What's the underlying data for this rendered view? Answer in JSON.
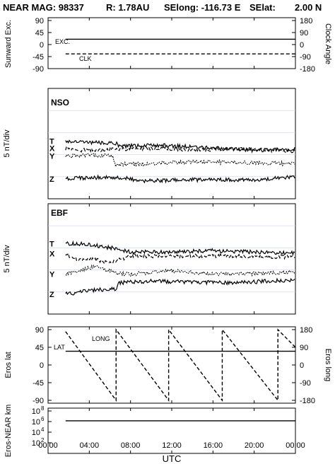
{
  "header": {
    "title_left": "NEAR MAG: 98337",
    "title_r": "R: 1.78AU",
    "title_selong": "SElong: -116.73 E",
    "title_selat": "SElat:",
    "title_selat_val": "2.00 N"
  },
  "x_axis": {
    "label": "UTC",
    "ticks": [
      "00:00",
      "04:00",
      "08:00",
      "12:00",
      "16:00",
      "20:00",
      "00:00"
    ]
  },
  "chart_data": [
    {
      "type": "line",
      "panel": "sunward-excursion-clock-angle",
      "ylabel_left": "Sunward Exc.",
      "ylabel_right": "Clock Angle",
      "yticks_left": [
        "90",
        "45",
        "0",
        "-45",
        "-90"
      ],
      "yticks_right": [
        "180",
        "90",
        "0",
        "-90",
        "-180"
      ],
      "ylim_left": [
        -90,
        90
      ],
      "ylim_right": [
        -180,
        180
      ],
      "series": [
        {
          "name": "EXC.",
          "style": "solid",
          "x": [
            1.7,
            24.0
          ],
          "y": [
            20,
            20
          ]
        },
        {
          "name": "CLK",
          "style": "dashed",
          "axis": "right",
          "x": [
            1.7,
            24.0
          ],
          "y": [
            -70,
            -70
          ]
        }
      ]
    },
    {
      "type": "line",
      "panel": "NSO",
      "tag": "NSO",
      "ylabel": "5 nT/div",
      "series": [
        {
          "name": "T",
          "style": "solid",
          "start": 7.4,
          "points": [
            [
              1.7,
              7.4
            ],
            [
              6.6,
              7.7
            ],
            [
              6.8,
              8.1
            ],
            [
              11,
              8.0
            ],
            [
              15,
              8.3
            ],
            [
              20,
              8.7
            ],
            [
              24,
              8.5
            ]
          ]
        },
        {
          "name": "X",
          "style": "dashed",
          "start": 8.4,
          "points": [
            [
              1.7,
              8.4
            ],
            [
              3,
              8.7
            ],
            [
              6,
              8.6
            ],
            [
              10,
              8.4
            ],
            [
              14,
              8.6
            ],
            [
              18,
              8.5
            ],
            [
              24,
              8.8
            ]
          ]
        },
        {
          "name": "Y",
          "style": "dotted",
          "start": 9.5,
          "points": [
            [
              1.7,
              9.5
            ],
            [
              5,
              9.4
            ],
            [
              6.3,
              9.5
            ],
            [
              6.5,
              10.7
            ],
            [
              10,
              10.6
            ],
            [
              14,
              10.3
            ],
            [
              18,
              10.4
            ],
            [
              24,
              10.6
            ]
          ]
        },
        {
          "name": "Z",
          "style": "solid",
          "start": 12.7,
          "points": [
            [
              1.7,
              12.7
            ],
            [
              5,
              12.5
            ],
            [
              7,
              12.5
            ],
            [
              9,
              13.0
            ],
            [
              12,
              12.9
            ],
            [
              16,
              12.8
            ],
            [
              20,
              12.9
            ],
            [
              24,
              12.4
            ]
          ]
        }
      ]
    },
    {
      "type": "line",
      "panel": "EBF",
      "tag": "EBF",
      "ylabel": "5 nT/div",
      "series": [
        {
          "name": "T",
          "style": "solid",
          "start": 5.6,
          "points": [
            [
              1.7,
              5.6
            ],
            [
              4,
              5.7
            ],
            [
              6.5,
              6.3
            ],
            [
              8,
              6.8
            ],
            [
              12,
              6.8
            ],
            [
              16,
              6.6
            ],
            [
              20,
              6.8
            ],
            [
              24,
              6.9
            ]
          ]
        },
        {
          "name": "X",
          "style": "dashed",
          "start": 7.0,
          "points": [
            [
              1.7,
              7.0
            ],
            [
              3,
              8.0
            ],
            [
              4,
              7.6
            ],
            [
              6,
              8.4
            ],
            [
              8,
              7.3
            ],
            [
              12,
              7.4
            ],
            [
              16,
              7.3
            ],
            [
              24,
              7.5
            ]
          ]
        },
        {
          "name": "Y",
          "style": "dotted",
          "start": 9.9,
          "points": [
            [
              1.7,
              9.9
            ],
            [
              3,
              9.5
            ],
            [
              4.5,
              8.8
            ],
            [
              6.5,
              9.7
            ],
            [
              8,
              9.9
            ],
            [
              12,
              9.4
            ],
            [
              16,
              9.9
            ],
            [
              20,
              9.8
            ],
            [
              24,
              9.6
            ]
          ]
        },
        {
          "name": "Z",
          "style": "solid",
          "start": 12.7,
          "points": [
            [
              1.7,
              12.7
            ],
            [
              4,
              12.2
            ],
            [
              6,
              12.0
            ],
            [
              6.6,
              12.0
            ],
            [
              6.8,
              11.1
            ],
            [
              10,
              10.9
            ],
            [
              14,
              11.0
            ],
            [
              18,
              11.1
            ],
            [
              24,
              10.7
            ]
          ]
        }
      ]
    },
    {
      "type": "line",
      "panel": "eros-lat-long",
      "ylabel_left": "Eros lat",
      "ylabel_right": "Eros long",
      "yticks_left": [
        "90",
        "45",
        "0",
        "-45",
        "-90"
      ],
      "yticks_right": [
        "180",
        "90",
        "0",
        "-90",
        "-180"
      ],
      "ylim_left": [
        -90,
        90
      ],
      "ylim_right": [
        -180,
        180
      ],
      "series": [
        {
          "name": "LAT",
          "style": "solid",
          "x": [
            1.7,
            24.0
          ],
          "y": [
            35,
            35
          ]
        },
        {
          "name": "LONG",
          "style": "dashed",
          "axis": "right",
          "x": [
            1.7,
            6.6,
            6.6,
            11.7,
            11.7,
            16.9,
            16.9,
            22.3,
            22.3,
            24.0
          ],
          "y": [
            170,
            -180,
            180,
            -180,
            180,
            -180,
            180,
            -180,
            180,
            90
          ]
        }
      ]
    },
    {
      "type": "line",
      "panel": "eros-near-km",
      "ylabel": "Eros-NEAR km",
      "yticks": [
        "10^8",
        "10^6",
        "10^4",
        "10^2"
      ],
      "yscale": "log",
      "ylim": [
        1,
        100000000
      ],
      "series": [
        {
          "name": "Eros-NEAR km",
          "style": "solid",
          "x": [
            1.7,
            24.0
          ],
          "y": [
            1400000,
            1400000
          ]
        }
      ]
    }
  ]
}
